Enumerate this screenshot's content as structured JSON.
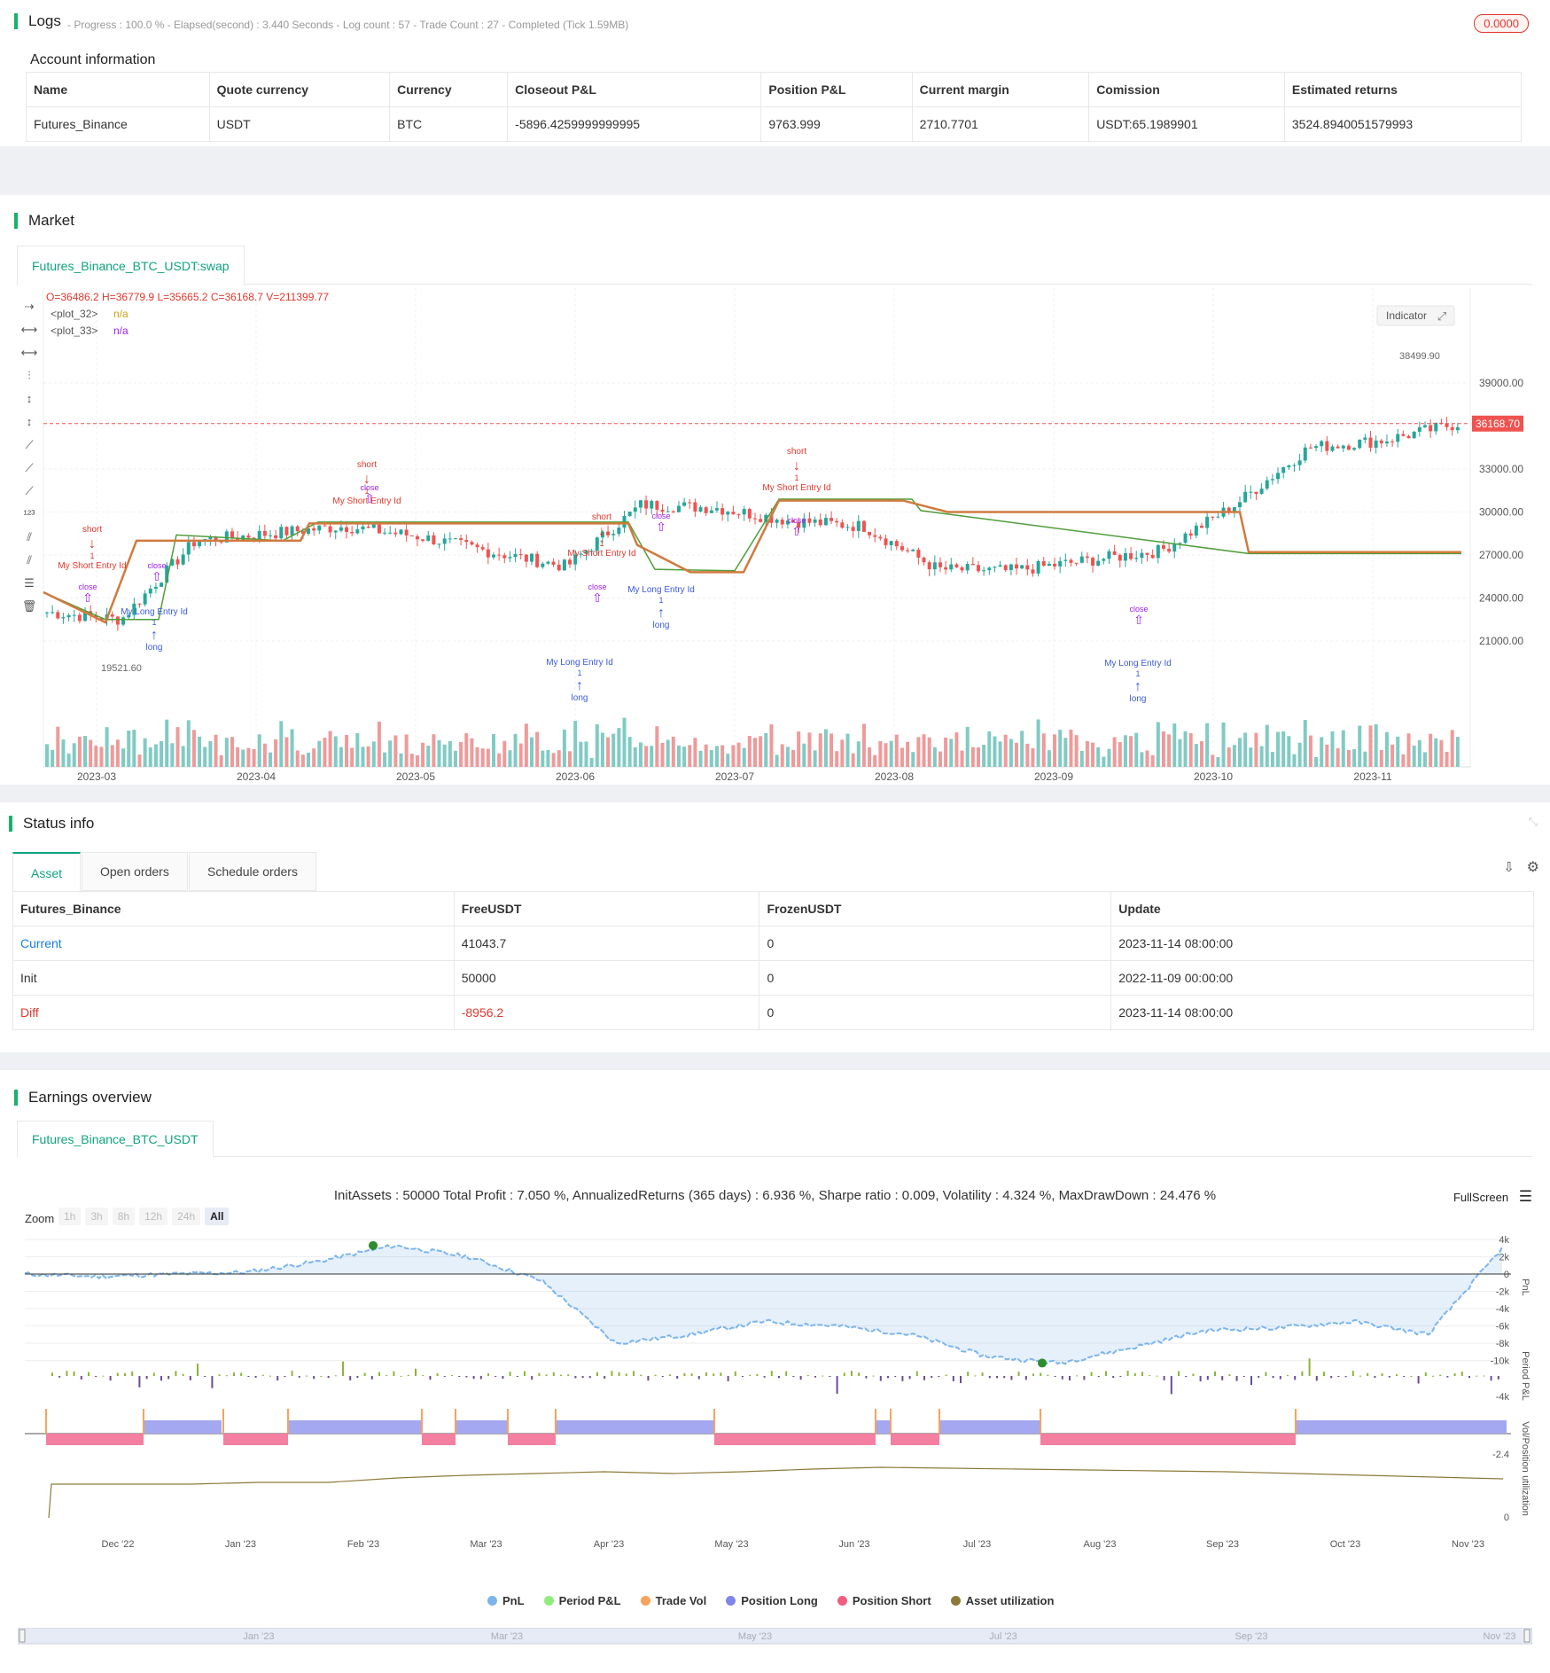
{
  "logs": {
    "title": "Logs",
    "status": "- Progress : 100.0 % - Elapsed(second) : 3.440  Seconds - Log count : 57 - Trade Count : 27 - Completed (Tick 1.59MB)",
    "badge": "0.0000"
  },
  "account": {
    "title": "Account information",
    "headers": [
      "Name",
      "Quote currency",
      "Currency",
      "Closeout P&L",
      "Position P&L",
      "Current margin",
      "Comission",
      "Estimated returns"
    ],
    "row": [
      "Futures_Binance",
      "USDT",
      "BTC",
      "-5896.4259999999995",
      "9763.999",
      "2710.7701",
      "USDT:65.1989901",
      "3524.8940051579993"
    ]
  },
  "market": {
    "title": "Market",
    "tab": "Futures_Binance_BTC_USDT:swap",
    "ohlc": "O=36486.2 H=36779.9 L=35665.2 C=36168.7 V=211399.77",
    "legend": [
      {
        "name": "<plot_32>",
        "value": "n/a"
      },
      {
        "name": "<plot_33>",
        "value": "n/a"
      }
    ],
    "indicator_btn": "Indicator",
    "price_labels": [
      "39000.00",
      "36000.00",
      "33000.00",
      "30000.00",
      "27000.00",
      "24000.00",
      "21000.00"
    ],
    "current_price": "36168.70",
    "high_label": "38499.90",
    "low_label": "19521.60",
    "x_labels": [
      "2023-03",
      "2023-04",
      "2023-05",
      "2023-06",
      "2023-07",
      "2023-08",
      "2023-09",
      "2023-10",
      "2023-11"
    ],
    "signals": {
      "short": "short",
      "long": "long",
      "close": "close",
      "one": "1",
      "short_entry": "My Short Entry Id",
      "long_entry": "My Long Entry Id"
    }
  },
  "status": {
    "title": "Status info",
    "tabs": [
      "Asset",
      "Open orders",
      "Schedule orders"
    ],
    "headers": [
      "Futures_Binance",
      "FreeUSDT",
      "FrozenUSDT",
      "Update"
    ],
    "rows": [
      [
        "Current",
        "41043.7",
        "0",
        "2023-11-14 08:00:00"
      ],
      [
        "Init",
        "50000",
        "0",
        "2022-11-09 00:00:00"
      ],
      [
        "Diff",
        "-8956.2",
        "0",
        "2023-11-14 08:00:00"
      ]
    ]
  },
  "earnings": {
    "title": "Earnings overview",
    "tab": "Futures_Binance_BTC_USDT",
    "summary": "InitAssets : 50000 Total Profit : 7.050 %, AnnualizedReturns (365 days) : 6.936 %, Sharpe ratio : 0.009, Volatility : 4.324 %, MaxDrawDown : 24.476 %",
    "fullscreen": "FullScreen",
    "zoom_label": "Zoom",
    "zoom_options": [
      "1h",
      "3h",
      "8h",
      "12h",
      "24h",
      "All"
    ],
    "pnl_ticks": [
      "4k",
      "2k",
      "0",
      "-2k",
      "-4k",
      "-6k",
      "-8k",
      "-10k"
    ],
    "period_tick": "-4k",
    "vol_tick": "-2.4",
    "util_tick": "0",
    "axis_titles": [
      "PnL",
      "Period P&L",
      "Vol/Position",
      "utilization"
    ],
    "x_labels": [
      "Dec '22",
      "Jan '23",
      "Feb '23",
      "Mar '23",
      "Apr '23",
      "May '23",
      "Jun '23",
      "Jul '23",
      "Aug '23",
      "Sep '23",
      "Oct '23",
      "Nov '23"
    ],
    "nav_labels": [
      "Jan '23",
      "Mar '23",
      "May '23",
      "Jul '23",
      "Sep '23",
      "Nov '23"
    ],
    "legend": [
      {
        "name": "PnL",
        "color": "#7cb5ec"
      },
      {
        "name": "Period P&L",
        "color": "#90ed7d"
      },
      {
        "name": "Trade Vol",
        "color": "#f7a35c"
      },
      {
        "name": "Position Long",
        "color": "#8085e9"
      },
      {
        "name": "Position Short",
        "color": "#f15c80"
      },
      {
        "name": "Asset utilization",
        "color": "#8d7a3a"
      }
    ]
  },
  "chart_data": [
    {
      "type": "candlestick",
      "title": "",
      "x": [
        "2023-03",
        "2023-04",
        "2023-05",
        "2023-06",
        "2023-07",
        "2023-08",
        "2023-09",
        "2023-10",
        "2023-11"
      ],
      "ylim": [
        19500,
        40000
      ],
      "close_path": [
        23000,
        22500,
        28000,
        28500,
        29000,
        28300,
        27200,
        26200,
        30500,
        30300,
        29400,
        29000,
        26000,
        25900,
        26600,
        27300,
        30500,
        34500,
        35000,
        36169
      ],
      "last_close": 36168.7,
      "high": 38499.9,
      "low": 19521.6
    },
    {
      "type": "area",
      "title": "",
      "series": [
        {
          "name": "PnL",
          "values": [
            0,
            -300,
            0,
            200,
            1500,
            3300,
            2000,
            -800,
            -8000,
            -7000,
            -5500,
            -6000,
            -7000,
            -9500,
            -10300,
            -8500,
            -6500,
            -6200,
            -5500,
            -7000,
            3000
          ]
        }
      ],
      "ylim": [
        -11000,
        4500
      ]
    }
  ]
}
